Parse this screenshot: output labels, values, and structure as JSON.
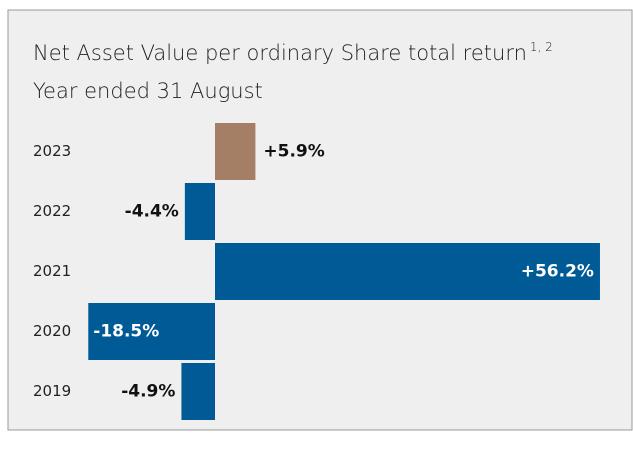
{
  "chart_data": {
    "type": "bar",
    "orientation": "horizontal",
    "title": "Net Asset Value per ordinary Share total return",
    "title_note": "1, 2",
    "subtitle": "Year ended 31 August",
    "categories": [
      "2023",
      "2022",
      "2021",
      "2020",
      "2019"
    ],
    "values": [
      5.9,
      -4.4,
      56.2,
      -18.5,
      -4.9
    ],
    "value_labels": [
      "+5.9%",
      "-4.4%",
      "+56.2%",
      "-18.5%",
      "-4.9%"
    ],
    "colors": [
      "#a47e65",
      "#005a96",
      "#005a96",
      "#005a96",
      "#005a96"
    ],
    "xlim": [
      -20,
      60
    ]
  }
}
